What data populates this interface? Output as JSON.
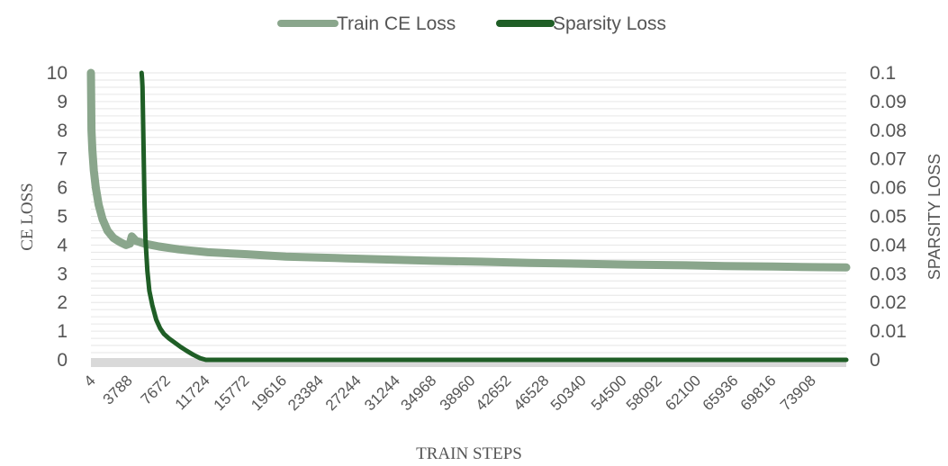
{
  "chart_data": {
    "type": "line",
    "x_label": "TRAIN STEPS",
    "y_left_label": "CE LOSS",
    "y_right_label": "SPARSITY LOSS",
    "y_left_lim": [
      0,
      10
    ],
    "y_right_lim": [
      0,
      0.1
    ],
    "y_left_ticks": [
      "0",
      "1",
      "2",
      "3",
      "4",
      "5",
      "6",
      "7",
      "8",
      "9",
      "10"
    ],
    "y_right_ticks": [
      "0",
      "0.01",
      "0.02",
      "0.03",
      "0.04",
      "0.05",
      "0.06",
      "0.07",
      "0.08",
      "0.09",
      "0.1"
    ],
    "x_lim": [
      4,
      77500
    ],
    "x_tick_labels": [
      "4",
      "3788",
      "7672",
      "11724",
      "15772",
      "19616",
      "23384",
      "27244",
      "31244",
      "34968",
      "38960",
      "42652",
      "46528",
      "50340",
      "54500",
      "58092",
      "62100",
      "65936",
      "69816",
      "73908"
    ],
    "grid": "horizontal",
    "legend_position": "top",
    "series": [
      {
        "name": "Train CE Loss",
        "axis": "left",
        "color": "#8aa68c",
        "x": [
          4,
          60,
          150,
          300,
          500,
          800,
          1200,
          1700,
          2300,
          3000,
          3600,
          4000,
          4200,
          4600,
          5500,
          7000,
          9000,
          12000,
          16000,
          20000,
          25000,
          30000,
          35000,
          40000,
          45000,
          50000,
          55000,
          60000,
          65000,
          70000,
          75000,
          77500
        ],
        "y": [
          10.0,
          8.0,
          7.3,
          6.6,
          6.0,
          5.4,
          4.9,
          4.5,
          4.25,
          4.1,
          4.0,
          4.05,
          4.3,
          4.15,
          4.05,
          3.95,
          3.85,
          3.75,
          3.68,
          3.6,
          3.55,
          3.5,
          3.45,
          3.42,
          3.38,
          3.35,
          3.32,
          3.3,
          3.27,
          3.25,
          3.23,
          3.22
        ]
      },
      {
        "name": "Sparsity Loss",
        "axis": "right",
        "color": "#1f5e26",
        "x": [
          5200,
          5250,
          5300,
          5400,
          5500,
          5600,
          5800,
          6000,
          6300,
          6700,
          7100,
          7500,
          8000,
          8600,
          9200,
          9800,
          10500,
          11200,
          11800,
          14000,
          20000,
          30000,
          40000,
          50000,
          60000,
          70000,
          77500
        ],
        "y": [
          0.1,
          0.098,
          0.095,
          0.075,
          0.055,
          0.042,
          0.031,
          0.024,
          0.019,
          0.014,
          0.011,
          0.009,
          0.0075,
          0.006,
          0.0045,
          0.0032,
          0.0018,
          0.0006,
          0.0,
          0.0,
          0.0,
          0.0,
          0.0,
          0.0,
          0.0,
          0.0,
          0.0
        ]
      }
    ]
  }
}
